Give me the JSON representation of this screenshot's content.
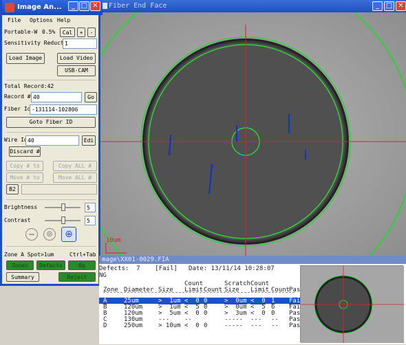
{
  "left_window": {
    "title": "Image An...",
    "menu": [
      "File",
      "Options",
      "Help"
    ],
    "portable_label": "Portable-W",
    "portable_value": "0.5%",
    "cal_label": "Cal",
    "plus_label": "+",
    "minus_label": "-",
    "sensitivity_label": "Sensitivity Reduct",
    "sensitivity_value": "1",
    "load_image": "Load Image",
    "load_video": "Load Video",
    "usb_cam": "USB-CAM",
    "total_record": "Total Record:42",
    "record_label": "Record #",
    "record_value": "40",
    "go_label": "Go",
    "fiber_id_label": "Fiber Id",
    "fiber_id_value": "-131114-102806",
    "goto_fiber": "Goto Fiber ID",
    "wire_id_label": "Wire Id",
    "wire_id_value": "40",
    "edit_label": "Edi",
    "discard": "Discard #",
    "copy_to": "Copy # to",
    "copy_all": "Copy ALL # to",
    "move_to": "Move # to",
    "move_all": "Move ALL # to",
    "b2_label": "B2",
    "brightness_label": "Brightness",
    "brightness_value": "5",
    "contrast_label": "Contrast",
    "contrast_value": "5",
    "zone_info": "Zone A  Spot>1um",
    "ctrl_tab": "Ctrl+Tab",
    "zones_btn": "Zones",
    "defects_btn": "Defects",
    "bg_btn": "Bg",
    "summary_btn": "Summary",
    "green_btn": "Reject",
    "accent": "#1d4ec4"
  },
  "fiber_window": {
    "title": "Fiber End Face",
    "scale_label": "10um"
  },
  "report": {
    "title": "mage\\XX01-0029.FIA",
    "defects_line": "Defects:  7    [Fail]   Date: 13/11/14 10:28:07",
    "ng": "NG",
    "headers_top": [
      "",
      "",
      "",
      "Count",
      "",
      "Scratch",
      "Count",
      "",
      ""
    ],
    "headers": [
      "Zone",
      "Diameter",
      "Size",
      "Limit",
      "Count",
      "Size",
      "Limit",
      "Count",
      "Pass?"
    ],
    "rows": [
      [
        "A",
        "25um",
        ">  1um",
        "<  0",
        "0",
        ">  0um",
        "<  0",
        "1",
        "Fail"
      ],
      [
        "B",
        "120um",
        ">  1um",
        "<  5",
        "0",
        ">  0um",
        "<  5",
        "6",
        "Fail"
      ],
      [
        "B",
        "120um",
        ">  5um",
        "<  0",
        "0",
        ">  3um",
        "<  0",
        "0",
        "Pass"
      ],
      [
        "C",
        "130um",
        "---",
        "--",
        "",
        "-----",
        "---",
        "--",
        "Pass"
      ],
      [
        "D",
        "250um",
        "> 10um",
        "<  0",
        "0",
        "-----",
        "---",
        "--",
        "Pass"
      ]
    ]
  }
}
